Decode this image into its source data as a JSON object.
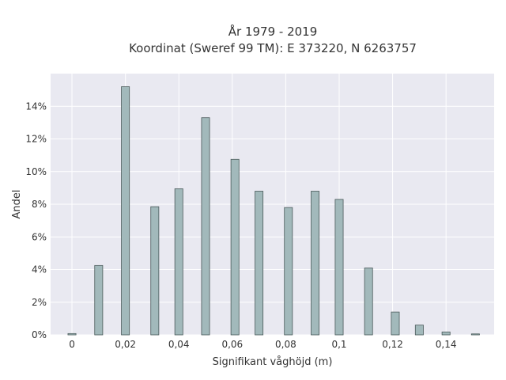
{
  "chart_data": {
    "type": "bar",
    "title": [
      "År 1979 - 2019",
      "Koordinat (Sweref 99 TM): E 373220, N 6263757"
    ],
    "xlabel": "Signifikant våghöjd (m)",
    "ylabel": "Andel",
    "xlim": [
      -0.008,
      0.158
    ],
    "ylim": [
      0,
      0.16
    ],
    "x_ticks": [
      0,
      0.02,
      0.04,
      0.06,
      0.08,
      0.1,
      0.12,
      0.14
    ],
    "x_tick_labels": [
      "0",
      "0,02",
      "0,04",
      "0,06",
      "0,08",
      "0,1",
      "0,12",
      "0,14"
    ],
    "y_ticks": [
      0,
      0.02,
      0.04,
      0.06,
      0.08,
      0.1,
      0.12,
      0.14
    ],
    "y_tick_labels": [
      "0%",
      "2%",
      "4%",
      "6%",
      "8%",
      "10%",
      "12%",
      "14%"
    ],
    "bar_width": 0.003,
    "x": [
      0,
      0.01,
      0.02,
      0.031,
      0.04,
      0.05,
      0.061,
      0.07,
      0.081,
      0.091,
      0.1,
      0.111,
      0.121,
      0.13,
      0.14,
      0.151
    ],
    "values": [
      0.0008,
      0.0425,
      0.152,
      0.0785,
      0.0895,
      0.133,
      0.1075,
      0.088,
      0.078,
      0.088,
      0.083,
      0.041,
      0.014,
      0.006,
      0.0018,
      0.0006
    ],
    "colors": {
      "bar_fill": "#a2b9bb",
      "bar_edge": "#4a5a5a",
      "plot_bg": "#e9e9f1",
      "grid": "#ffffff"
    },
    "grid": true
  }
}
